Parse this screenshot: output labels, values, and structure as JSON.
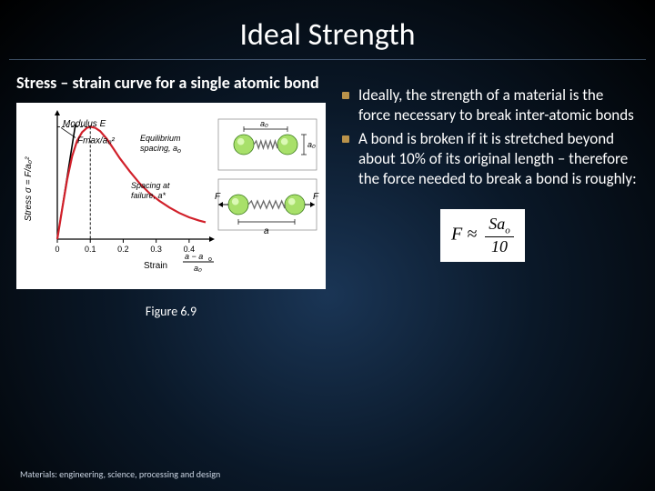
{
  "title": "Ideal Strength",
  "left": {
    "subtitle": "Stress – strain curve for a single atomic bond",
    "figcaption": "Figure 6.9"
  },
  "bullets": [
    "Ideally, the strength of a material is the force necessary to break inter-atomic bonds",
    "A bond is broken if it is stretched beyond about 10% of its original length – therefore the force needed to break a bond is roughly:"
  ],
  "formula": {
    "lhs": "F ≈",
    "num": "Sa",
    "num_sub": "o",
    "den": "10"
  },
  "footer": "Materials: engineering, science, processing and design",
  "chart": {
    "type": "line",
    "background": "#ffffff",
    "curve_color": "#d1202a",
    "curve_width": 2.2,
    "axis_color": "#000000",
    "ylabel": "Stress σ = F/a₀²",
    "xlabel_main": "Strain",
    "xlabel_fraction_num": "a − a",
    "xlabel_fraction_sub": "o",
    "xlabel_fraction_den": "a₀",
    "xlim": [
      0,
      0.45
    ],
    "ylim": [
      0,
      1.1
    ],
    "xticks": [
      0,
      0.1,
      0.2,
      0.3,
      0.4
    ],
    "modulusE_label": "Modulus E",
    "fmax_label": "Fmax/a₀²",
    "equil_label1": "Equilibrium",
    "equil_label2": "spacing, a",
    "equil_label2_sub": "o",
    "fail_label1": "Spacing at",
    "fail_label2": "failure, a*",
    "curve_points": [
      [
        0.0,
        0.0
      ],
      [
        0.015,
        0.28
      ],
      [
        0.03,
        0.55
      ],
      [
        0.045,
        0.76
      ],
      [
        0.06,
        0.9
      ],
      [
        0.075,
        0.98
      ],
      [
        0.09,
        1.02
      ],
      [
        0.1,
        1.03
      ],
      [
        0.115,
        1.02
      ],
      [
        0.13,
        0.99
      ],
      [
        0.15,
        0.92
      ],
      [
        0.17,
        0.83
      ],
      [
        0.19,
        0.74
      ],
      [
        0.22,
        0.62
      ],
      [
        0.25,
        0.51
      ],
      [
        0.28,
        0.42
      ],
      [
        0.31,
        0.35
      ],
      [
        0.34,
        0.29
      ],
      [
        0.37,
        0.24
      ],
      [
        0.4,
        0.2
      ],
      [
        0.43,
        0.17
      ],
      [
        0.45,
        0.155
      ]
    ],
    "tangent": [
      [
        0,
        0
      ],
      [
        0.055,
        1.05
      ]
    ],
    "fmax_y": 1.03,
    "fmax_x": 0.1,
    "atoms": {
      "atom_fill": "#a8e06a",
      "atom_stroke": "#3a7a1a",
      "spring_color": "#6b6b6b"
    },
    "diagram_labels": {
      "a0_top": "a₀",
      "a0_side": "a₀",
      "F": "F",
      "a": "a"
    }
  }
}
